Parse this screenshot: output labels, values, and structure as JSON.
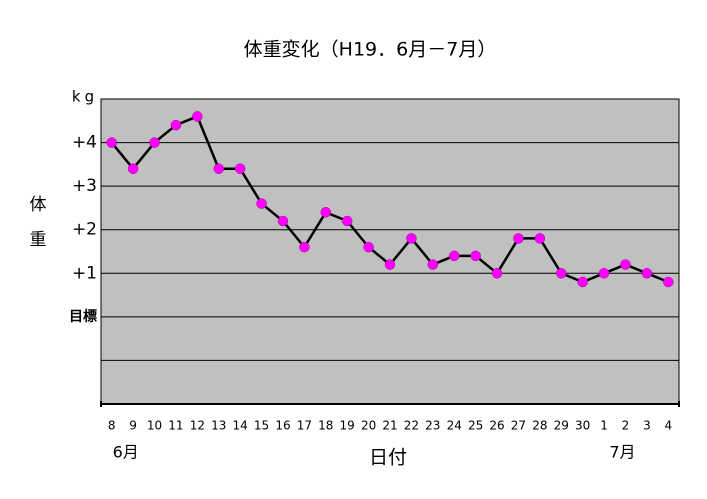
{
  "chart_data": {
    "type": "line",
    "title": "体重変化（H19．6月－7月）",
    "y_unit": "kg",
    "y_label": [
      "体",
      "重"
    ],
    "x_label": "日付",
    "month_labels": [
      "6月",
      "7月"
    ],
    "categories": [
      "8",
      "9",
      "10",
      "11",
      "12",
      "13",
      "14",
      "15",
      "16",
      "17",
      "18",
      "19",
      "20",
      "21",
      "22",
      "23",
      "24",
      "25",
      "26",
      "27",
      "28",
      "29",
      "30",
      "1",
      "2",
      "3",
      "4"
    ],
    "series": [
      {
        "name": "体重",
        "color": "#000000",
        "marker_color": "#ff00ff",
        "values": [
          4.0,
          3.4,
          4.0,
          4.4,
          4.6,
          3.4,
          3.4,
          2.6,
          2.2,
          1.6,
          2.4,
          2.2,
          1.6,
          1.2,
          1.8,
          1.2,
          1.4,
          1.4,
          1.0,
          1.8,
          1.8,
          1.0,
          0.8,
          1.0,
          1.2,
          1.0,
          0.8
        ]
      }
    ],
    "ylim": [
      -2,
      5
    ],
    "yticks": [
      {
        "value": -1,
        "label": null
      },
      {
        "value": 0,
        "label": "目標"
      },
      {
        "value": 1,
        "label": "+1"
      },
      {
        "value": 2,
        "label": "+2"
      },
      {
        "value": 3,
        "label": "+3"
      },
      {
        "value": 4,
        "label": "+4"
      }
    ],
    "grid": true,
    "background": "#c0c0c0"
  }
}
